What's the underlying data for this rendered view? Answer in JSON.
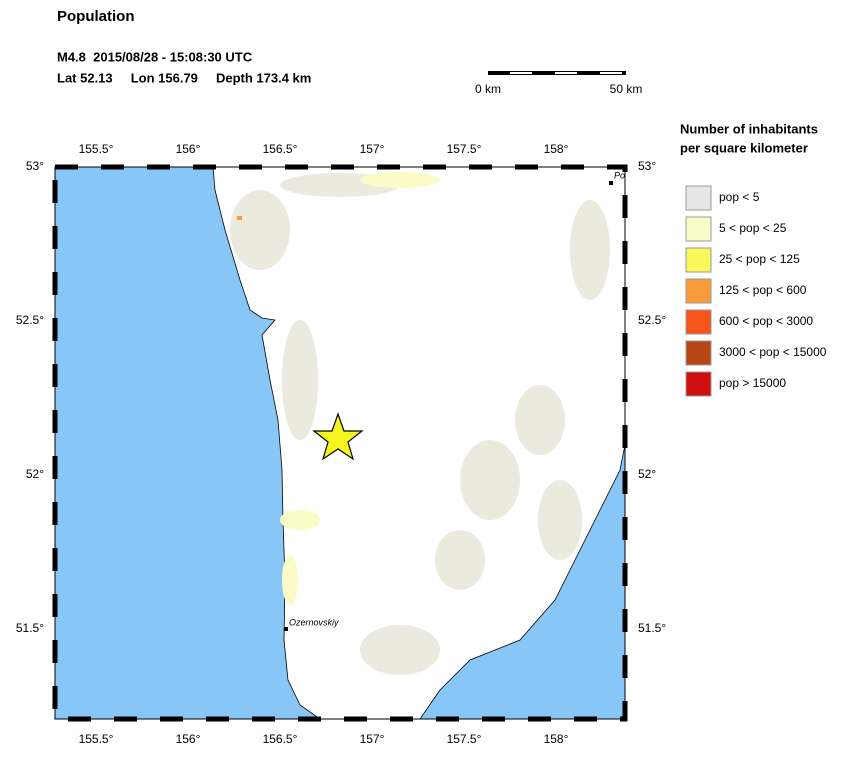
{
  "header": {
    "title": "Population",
    "event": "M4.8  2015/08/28 - 15:08:30 UTC",
    "location": "Lat 52.13     Lon 156.79     Depth 173.4 km"
  },
  "scale": {
    "start": "0 km",
    "end": "50 km"
  },
  "map": {
    "lon_labels": [
      "155.5°",
      "156°",
      "156.5°",
      "157°",
      "157.5°",
      "158°"
    ],
    "lat_labels": [
      "53°",
      "52.5°",
      "52°",
      "51.5°"
    ],
    "places": [
      "Ozernovskiy",
      "Po"
    ]
  },
  "legend": {
    "title": [
      "Number of inhabitants",
      "per square kilometer"
    ],
    "items": [
      {
        "label": "pop < 5",
        "color": "#e6e6e6"
      },
      {
        "label": "5 < pop < 25",
        "color": "#fbfbc8"
      },
      {
        "label": "25 < pop < 125",
        "color": "#f8f85a"
      },
      {
        "label": "125 < pop < 600",
        "color": "#f99b3a"
      },
      {
        "label": "600 < pop < 3000",
        "color": "#f5541a"
      },
      {
        "label": "3000 < pop < 15000",
        "color": "#b64616"
      },
      {
        "label": "pop > 15000",
        "color": "#d01010"
      }
    ]
  }
}
